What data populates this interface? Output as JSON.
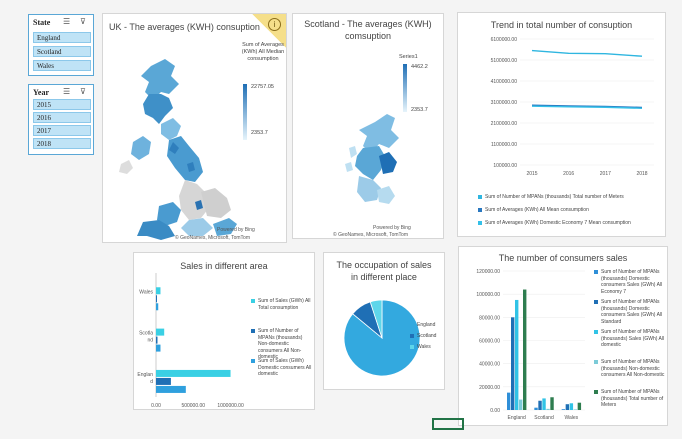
{
  "slicers": {
    "state": {
      "title": "State",
      "items": [
        "England",
        "Scotland",
        "Wales"
      ]
    },
    "year": {
      "title": "Year",
      "items": [
        "2015",
        "2016",
        "2017",
        "2018"
      ]
    }
  },
  "uk_map": {
    "title": "UK - The averages (KWH) consuption",
    "legend_title": "Sum of Averages (KWh) All Median consumption",
    "max": "22757.05",
    "min": "2353.7",
    "credit1": "Powered by Bing",
    "credit2": "© GeoNames, Microsoft, TomTom"
  },
  "scot_map": {
    "title": "Scotland - The averages (KWH) comsuption",
    "legend_title": "Series1",
    "max": "4462.2",
    "min": "2353.7",
    "credit1": "Powered by Bing",
    "credit2": "© GeoNames, Microsoft, TomTom"
  },
  "trend": {
    "title": "Trend in total number of consuption",
    "legend": [
      "Sum of Number of MPANs (thousands) Total number of Meters",
      "Sum of Averages (KWh) All Mean consumption",
      "Sum of Averages (KWh) Domestic Economy 7 Mean consumption"
    ],
    "chart_data": {
      "type": "line",
      "x": [
        "2015",
        "2016",
        "2017",
        "2018"
      ],
      "yticks": [
        "100000.00",
        "1100000.00",
        "2100000.00",
        "3100000.00",
        "4100000.00",
        "5100000.00",
        "6100000.00"
      ],
      "ylim": [
        100000,
        6100000
      ],
      "series": [
        {
          "name": "Sum of Number of MPANs (thousands) Total number of Meters",
          "values": [
            5550000,
            5420000,
            5400000,
            5280000
          ],
          "color": "#2fb6e0"
        },
        {
          "name": "Sum of Averages (KWh) All Mean consumption",
          "values": [
            2950000,
            2910000,
            2890000,
            2840000
          ],
          "color": "#2a78c0"
        },
        {
          "name": "Sum of Averages (KWh) Domestic Economy 7 Mean consumption",
          "values": [
            2900000,
            2870000,
            2850000,
            2800000
          ],
          "color": "#34c0e8"
        }
      ]
    }
  },
  "sales_area": {
    "title": "Sales in different area",
    "legend": [
      "Sum of Sales (GWh) All Total consumption",
      "Sum of Number of MPANs (thousands) Non-domestic consumers All Non-domestic",
      "Sum of Sales (GWh) Domestic consumers All domestic"
    ],
    "chart_data": {
      "type": "bar",
      "categories": [
        "Wales",
        "Scotla nd",
        "Englan d"
      ],
      "xticks": [
        "0.00",
        "500000.00",
        "1000000.00"
      ],
      "xlim": [
        0,
        1100000
      ],
      "series": [
        {
          "name": "Sum of Sales (GWh) All Total consumption",
          "values": [
            60000,
            110000,
            1000000
          ],
          "color": "#3ad0e4"
        },
        {
          "name": "Sum of Number of MPANs (thousands) Non-domestic consumers All Non-domestic",
          "values": [
            8000,
            20000,
            200000
          ],
          "color": "#1f6fb5"
        },
        {
          "name": "Sum of Sales (GWh) Domestic consumers All domestic",
          "values": [
            30000,
            60000,
            400000
          ],
          "color": "#2fa0de"
        }
      ]
    }
  },
  "occupation": {
    "title": "The occupation of sales in different place",
    "legend": [
      "England",
      "Scotland",
      "Wales"
    ],
    "chart_data": {
      "type": "pie",
      "labels": [
        "England",
        "Scotland",
        "Wales"
      ],
      "values": [
        86,
        9,
        5
      ],
      "colors": [
        "#33a9df",
        "#1f6fb5",
        "#5ed6ea"
      ]
    }
  },
  "consumers": {
    "title": "The number of consumers sales",
    "legend": [
      "Sum of Number of MPANs (thousands) Domestic consumers Sales (GWh) All Economy 7",
      "Sum of Number of MPANs (thousands) Domestic consumers Sales (GWh) All Standard",
      "Sum of Number of MPANs (thousands) Sales (GWh) All domestic",
      "Sum of Number of MPANs (thousands) Non-domestic consumers All Non-domestic",
      "Sum of Number of MPANs (thousands) Total number of Meters"
    ],
    "chart_data": {
      "type": "bar",
      "categories": [
        "England",
        "Scotland",
        "Wales"
      ],
      "yticks": [
        "0.00",
        "20000.00",
        "40000.00",
        "60000.00",
        "80000.00",
        "100000.00",
        "120000.00"
      ],
      "ylim": [
        0,
        120000
      ],
      "series": [
        {
          "name": "Sum of Number of MPANs (thousands) Domestic consumers Sales (GWh) All Economy 7",
          "values": [
            15000,
            2000,
            700
          ],
          "color": "#2f8fd8"
        },
        {
          "name": "Sum of Number of MPANs (thousands) Domestic consumers Sales (GWh) All Standard",
          "values": [
            80000,
            8000,
            5000
          ],
          "color": "#1f6fb5"
        },
        {
          "name": "Sum of Number of MPANs (thousands) Sales (GWh) All domestic",
          "values": [
            95000,
            10000,
            5800
          ],
          "color": "#31c3e6"
        },
        {
          "name": "Sum of Number of MPANs (thousands) Non-domestic consumers All Non-domestic",
          "values": [
            9000,
            1000,
            500
          ],
          "color": "#7ccbd8"
        },
        {
          "name": "Sum of Number of MPANs (thousands) Total number of Meters",
          "values": [
            104000,
            11000,
            6300
          ],
          "color": "#2e7d4f"
        }
      ]
    }
  }
}
